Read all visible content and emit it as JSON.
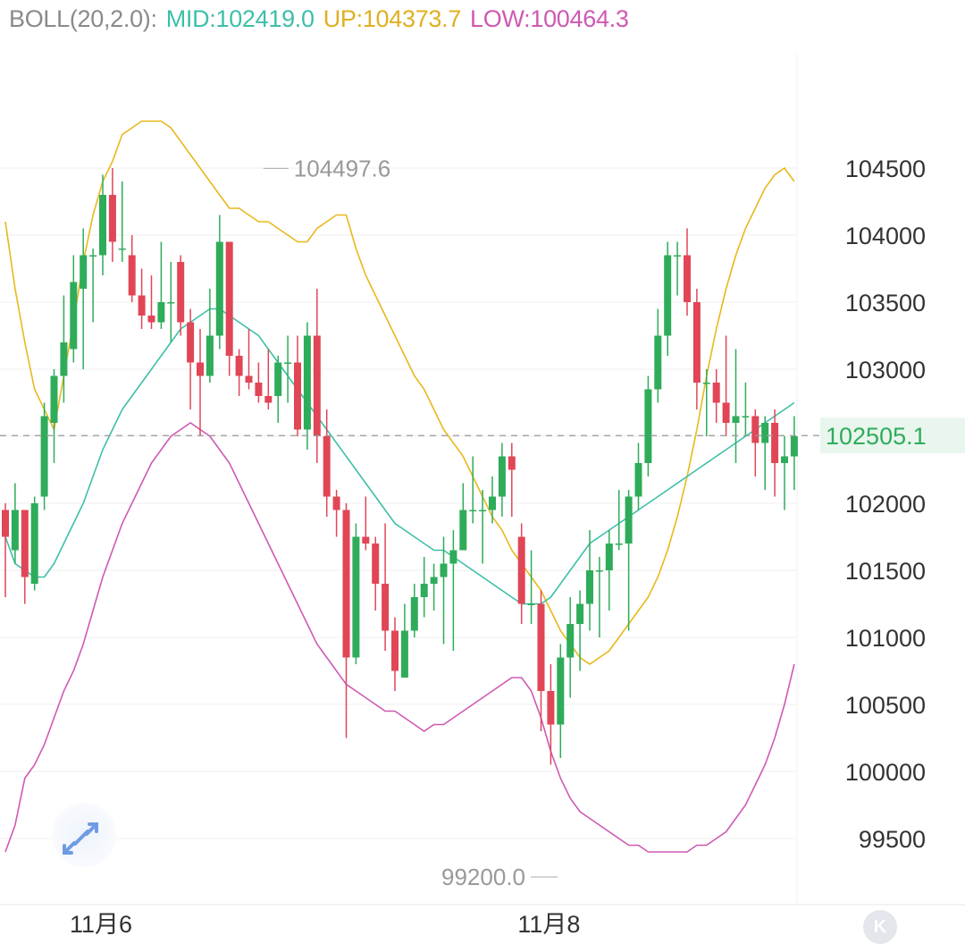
{
  "indicator": {
    "name": "BOLL(20,2.0):",
    "mid": "MID:102419.0",
    "up": "UP:104373.7",
    "low": "LOW:100464.3"
  },
  "colors": {
    "up_candle": "#2eac5a",
    "down_candle": "#e04656",
    "mid": "#3dbfa9",
    "upper": "#e8b81c",
    "lower": "#cf59b3",
    "axis_text": "#333333",
    "marker_text": "#999999",
    "grid": "#efefef",
    "price_badge_bg": "#e9f6ee",
    "price_badge_text": "#2eac5a"
  },
  "buttons": {
    "expand_icon": "expand-arrows-icon",
    "k_label": "K"
  },
  "chart_data": {
    "type": "candlestick",
    "ylim": [
      99000,
      105200
    ],
    "y_ticks": [
      104500,
      104000,
      103500,
      103000,
      102500,
      102000,
      101500,
      101000,
      100500,
      100000,
      99500
    ],
    "y_tick_labels": [
      "104500",
      "104000",
      "103500",
      "103000",
      "102000",
      "101500",
      "101000",
      "100500",
      "100000",
      "99500"
    ],
    "x_labels": [
      {
        "label": "11月6",
        "index": 10
      },
      {
        "label": "11月8",
        "index": 56
      }
    ],
    "last_price": 102505.1,
    "last_price_label": "102505.1",
    "high_marker": {
      "label": "104497.6",
      "index": 12
    },
    "low_marker": {
      "label": "99200.0",
      "index": 52
    },
    "candles": [
      [
        101950,
        101750,
        102000,
        101300
      ],
      [
        101650,
        101950,
        102150,
        101550
      ],
      [
        101950,
        101450,
        101950,
        101250
      ],
      [
        101400,
        102000,
        102050,
        101350
      ],
      [
        102050,
        102650,
        102750,
        101950
      ],
      [
        102600,
        102950,
        103000,
        102300
      ],
      [
        102950,
        103200,
        103550,
        102750
      ],
      [
        103150,
        103650,
        103850,
        103050
      ],
      [
        103600,
        103850,
        104050,
        103000
      ],
      [
        103850,
        103850,
        103900,
        103350
      ],
      [
        103850,
        104300,
        104450,
        103700
      ],
      [
        104300,
        103950,
        104500,
        103800
      ],
      [
        103900,
        103900,
        104400,
        103800
      ],
      [
        103850,
        103550,
        104000,
        103500
      ],
      [
        103550,
        103400,
        103750,
        103300
      ],
      [
        103400,
        103350,
        103700,
        103300
      ],
      [
        103350,
        103500,
        103950,
        103300
      ],
      [
        103500,
        103500,
        103800,
        103200
      ],
      [
        103800,
        103350,
        103850,
        103250
      ],
      [
        103350,
        103050,
        103450,
        102700
      ],
      [
        103050,
        102950,
        103300,
        102500
      ],
      [
        102950,
        103250,
        103600,
        102900
      ],
      [
        103250,
        103950,
        104150,
        103150
      ],
      [
        103950,
        103100,
        103950,
        102950
      ],
      [
        103100,
        102950,
        103150,
        102800
      ],
      [
        102950,
        102900,
        103300,
        102850
      ],
      [
        102900,
        102800,
        103050,
        102750
      ],
      [
        102800,
        102750,
        103150,
        102700
      ],
      [
        102800,
        103050,
        103100,
        102600
      ],
      [
        103050,
        103050,
        103250,
        102750
      ],
      [
        103050,
        102550,
        103250,
        102500
      ],
      [
        102550,
        103250,
        103350,
        102400
      ],
      [
        103250,
        102500,
        103600,
        102300
      ],
      [
        102500,
        102050,
        102700,
        101900
      ],
      [
        102050,
        101950,
        102100,
        101750
      ],
      [
        101950,
        100850,
        102000,
        100250
      ],
      [
        100850,
        101750,
        101850,
        100800
      ],
      [
        101750,
        101700,
        102050,
        101650
      ],
      [
        101700,
        101400,
        101750,
        101200
      ],
      [
        101400,
        101050,
        101850,
        100900
      ],
      [
        101050,
        100750,
        101150,
        100600
      ],
      [
        100700,
        101050,
        101250,
        100850
      ],
      [
        101050,
        101300,
        101400,
        101000
      ],
      [
        101300,
        101400,
        101600,
        101150
      ],
      [
        101400,
        101450,
        101550,
        101200
      ],
      [
        101450,
        101550,
        101750,
        100950
      ],
      [
        101550,
        101650,
        101800,
        100900
      ],
      [
        101650,
        101950,
        102150,
        101850
      ],
      [
        101950,
        101950,
        102350,
        101850
      ],
      [
        101950,
        101950,
        102100,
        101550
      ],
      [
        101950,
        102050,
        102200,
        101850
      ],
      [
        102050,
        102350,
        102450,
        101900
      ],
      [
        102350,
        102250,
        102450,
        101900
      ],
      [
        101750,
        101250,
        101850,
        101100
      ],
      [
        101250,
        101250,
        101650,
        101100
      ],
      [
        101250,
        100600,
        101350,
        100300
      ],
      [
        100600,
        100350,
        100800,
        100050
      ],
      [
        100350,
        100850,
        100950,
        100100
      ],
      [
        100850,
        101100,
        101300,
        100550
      ],
      [
        101100,
        101250,
        101350,
        100750
      ],
      [
        101250,
        101500,
        101800,
        101050
      ],
      [
        101500,
        101500,
        101600,
        101000
      ],
      [
        101500,
        101700,
        101800,
        101200
      ],
      [
        101700,
        101700,
        102100,
        101650
      ],
      [
        101700,
        102050,
        102100,
        101050
      ],
      [
        102050,
        102300,
        102450,
        101950
      ],
      [
        102300,
        102850,
        102950,
        102200
      ],
      [
        102850,
        103250,
        103450,
        102750
      ],
      [
        103250,
        103850,
        103950,
        103100
      ],
      [
        103850,
        103850,
        103950,
        103550
      ],
      [
        103850,
        103500,
        104050,
        103400
      ],
      [
        103500,
        102900,
        103600,
        102700
      ],
      [
        102900,
        102900,
        103000,
        102500
      ],
      [
        102900,
        102750,
        103000,
        102600
      ],
      [
        102750,
        102600,
        103250,
        102500
      ],
      [
        102600,
        102650,
        103150,
        102300
      ],
      [
        102650,
        102650,
        102900,
        102500
      ],
      [
        102650,
        102450,
        102700,
        102200
      ],
      [
        102450,
        102600,
        102650,
        102100
      ],
      [
        102600,
        102300,
        102700,
        102050
      ],
      [
        102300,
        102350,
        102500,
        101950
      ],
      [
        102350,
        102500,
        102650,
        102100
      ]
    ],
    "upper_band": [
      104100,
      103600,
      103200,
      102850,
      102700,
      102550,
      102950,
      103350,
      103800,
      104150,
      104400,
      104550,
      104750,
      104800,
      104850,
      104850,
      104850,
      104800,
      104700,
      104600,
      104500,
      104400,
      104300,
      104200,
      104200,
      104150,
      104100,
      104100,
      104050,
      104000,
      103950,
      103950,
      104050,
      104100,
      104150,
      104150,
      103900,
      103700,
      103550,
      103400,
      103250,
      103100,
      102950,
      102850,
      102700,
      102550,
      102450,
      102350,
      102200,
      102050,
      101900,
      101800,
      101650,
      101550,
      101450,
      101350,
      101200,
      101050,
      100950,
      100850,
      100800,
      100850,
      100900,
      101000,
      101100,
      101200,
      101300,
      101450,
      101650,
      101900,
      102200,
      102550,
      102950,
      103300,
      103600,
      103850,
      104050,
      104200,
      104350,
      104450,
      104500,
      104400
    ],
    "mid_band": [
      101750,
      101550,
      101500,
      101450,
      101450,
      101550,
      101700,
      101850,
      102000,
      102200,
      102400,
      102550,
      102700,
      102800,
      102900,
      103000,
      103100,
      103200,
      103300,
      103350,
      103400,
      103450,
      103450,
      103400,
      103350,
      103300,
      103250,
      103150,
      103050,
      102950,
      102850,
      102750,
      102650,
      102550,
      102450,
      102350,
      102250,
      102150,
      102050,
      101950,
      101850,
      101800,
      101750,
      101700,
      101650,
      101650,
      101600,
      101550,
      101500,
      101450,
      101400,
      101350,
      101300,
      101250,
      101250,
      101250,
      101300,
      101400,
      101500,
      101600,
      101700,
      101750,
      101800,
      101850,
      101900,
      101950,
      102000,
      102050,
      102100,
      102150,
      102200,
      102250,
      102300,
      102350,
      102400,
      102450,
      102500,
      102550,
      102600,
      102650,
      102700,
      102750
    ],
    "lower_band": [
      99400,
      99600,
      99950,
      100050,
      100200,
      100400,
      100600,
      100750,
      100950,
      101200,
      101450,
      101650,
      101850,
      102000,
      102150,
      102300,
      102400,
      102500,
      102550,
      102600,
      102550,
      102500,
      102400,
      102300,
      102150,
      102000,
      101850,
      101700,
      101550,
      101400,
      101250,
      101100,
      100950,
      100850,
      100750,
      100650,
      100600,
      100550,
      100500,
      100450,
      100450,
      100400,
      100350,
      100300,
      100350,
      100350,
      100400,
      100450,
      100500,
      100550,
      100600,
      100650,
      100700,
      100700,
      100600,
      100400,
      100150,
      99950,
      99800,
      99700,
      99650,
      99600,
      99550,
      99500,
      99450,
      99450,
      99400,
      99400,
      99400,
      99400,
      99400,
      99450,
      99450,
      99500,
      99550,
      99650,
      99750,
      99900,
      100050,
      100250,
      100500,
      100800
    ]
  }
}
